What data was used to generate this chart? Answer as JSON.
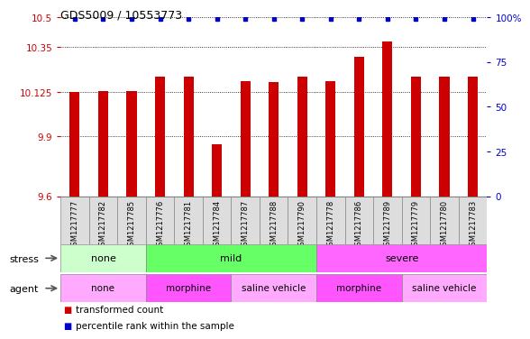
{
  "title": "GDS5009 / 10553773",
  "samples": [
    "GSM1217777",
    "GSM1217782",
    "GSM1217785",
    "GSM1217776",
    "GSM1217781",
    "GSM1217784",
    "GSM1217787",
    "GSM1217788",
    "GSM1217790",
    "GSM1217778",
    "GSM1217786",
    "GSM1217789",
    "GSM1217779",
    "GSM1217780",
    "GSM1217783"
  ],
  "bar_values": [
    10.125,
    10.13,
    10.13,
    10.2,
    10.2,
    9.86,
    10.18,
    10.175,
    10.2,
    10.18,
    10.3,
    10.38,
    10.2,
    10.2,
    10.2
  ],
  "percentile_values": [
    99,
    99,
    99,
    99,
    99,
    99,
    99,
    99,
    99,
    99,
    99,
    99,
    99,
    99,
    99
  ],
  "bar_color": "#cc0000",
  "dot_color": "#0000cc",
  "ylim_left": [
    9.6,
    10.5
  ],
  "yticks_left": [
    9.6,
    9.9,
    10.125,
    10.35,
    10.5
  ],
  "ytick_labels_left": [
    "9.6",
    "9.9",
    "10.125",
    "10.35",
    "10.5"
  ],
  "ylim_right": [
    0,
    100
  ],
  "yticks_right": [
    0,
    25,
    50,
    75,
    100
  ],
  "ytick_labels_right": [
    "0",
    "25",
    "50",
    "75",
    "100%"
  ],
  "stress_groups": [
    {
      "label": "none",
      "start": 0,
      "end": 3,
      "color": "#ccffcc"
    },
    {
      "label": "mild",
      "start": 3,
      "end": 9,
      "color": "#66ff66"
    },
    {
      "label": "severe",
      "start": 9,
      "end": 15,
      "color": "#ff66ff"
    }
  ],
  "agent_groups": [
    {
      "label": "none",
      "start": 0,
      "end": 3,
      "color": "#ffaaff"
    },
    {
      "label": "morphine",
      "start": 3,
      "end": 6,
      "color": "#ff55ff"
    },
    {
      "label": "saline vehicle",
      "start": 6,
      "end": 9,
      "color": "#ffaaff"
    },
    {
      "label": "morphine",
      "start": 9,
      "end": 12,
      "color": "#ff55ff"
    },
    {
      "label": "saline vehicle",
      "start": 12,
      "end": 15,
      "color": "#ffaaff"
    }
  ],
  "legend_items": [
    {
      "label": "transformed count",
      "color": "#cc0000"
    },
    {
      "label": "percentile rank within the sample",
      "color": "#0000cc"
    }
  ],
  "bar_width": 0.35
}
